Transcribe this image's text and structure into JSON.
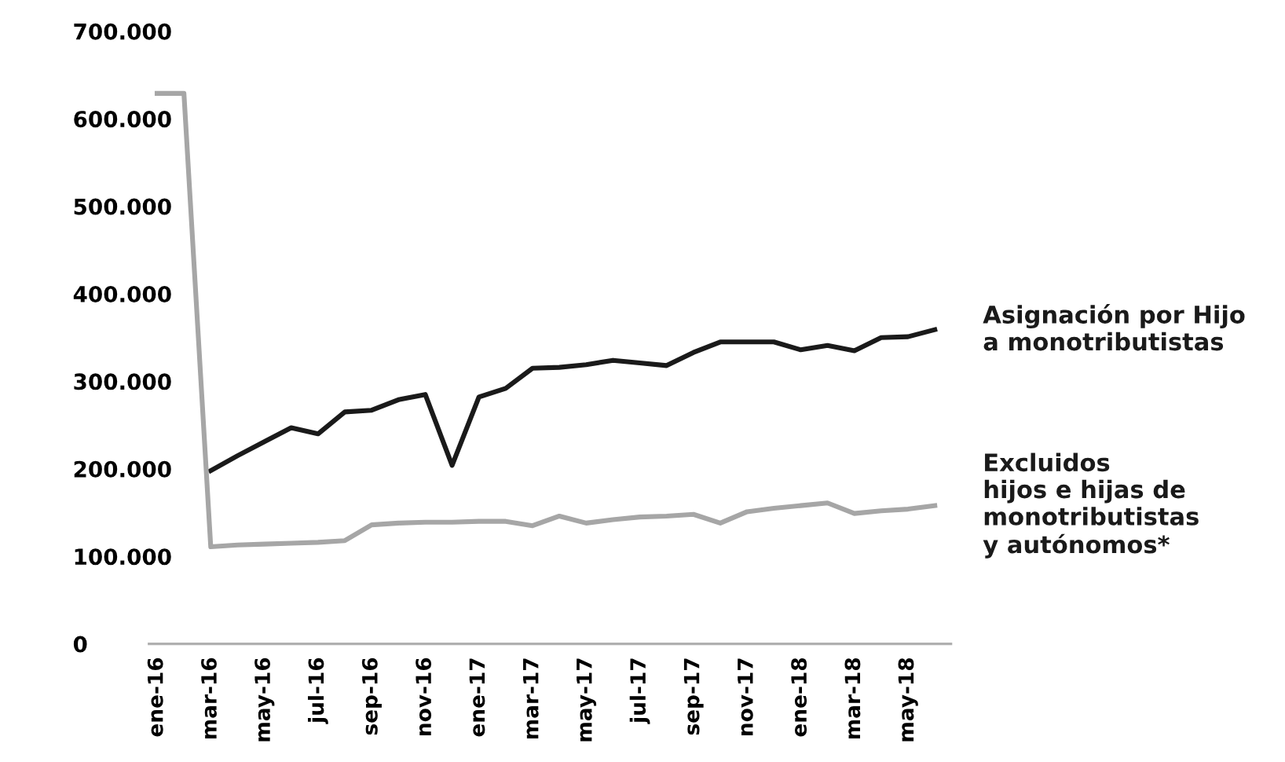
{
  "chart_data": {
    "type": "line",
    "categories": [
      "ene-16",
      null,
      "mar-16",
      null,
      "may-16",
      null,
      "jul-16",
      null,
      "sep-16",
      null,
      "nov-16",
      null,
      "ene-17",
      null,
      "mar-17",
      null,
      "may-17",
      null,
      "jul-17",
      null,
      "sep-17",
      null,
      "nov-17",
      null,
      "ene-18",
      null,
      "mar-18",
      null,
      "may-18",
      null
    ],
    "series": [
      {
        "name": "Asignación por Hijo\na monotributistas",
        "color": "#1a1a1a",
        "values": [
          null,
          null,
          198000,
          215000,
          231000,
          247000,
          240000,
          265000,
          267000,
          279000,
          285000,
          204000,
          282000,
          292000,
          315000,
          316000,
          319000,
          324000,
          321000,
          318000,
          333000,
          345000,
          345000,
          345000,
          336000,
          341000,
          335000,
          350000,
          351000,
          359000
        ]
      },
      {
        "name": "Excluidos\nhijos e hijas de\nmonotributistas\ny autónomos*",
        "color": "#a6a6a6",
        "values": [
          629000,
          629000,
          111000,
          113000,
          114000,
          115000,
          116000,
          118000,
          136000,
          138000,
          139000,
          139000,
          140000,
          140000,
          135000,
          146000,
          138000,
          142000,
          145000,
          146000,
          148000,
          138000,
          151000,
          155000,
          158000,
          161000,
          149000,
          152000,
          154000,
          158000
        ]
      }
    ],
    "ylim": [
      0,
      700000
    ],
    "yticks": [
      0,
      {
        "value": 100000,
        "label": "100.000"
      },
      {
        "value": 200000,
        "label": "200.000"
      },
      {
        "value": 300000,
        "label": "300.000"
      },
      {
        "value": 400000,
        "label": "400.000"
      },
      {
        "value": 500000,
        "label": "500.000"
      },
      {
        "value": 600000,
        "label": "600.000"
      },
      {
        "value": 700000,
        "label": "700.000"
      }
    ],
    "grid": false,
    "legend": false,
    "marker": "none",
    "line_style": "solid"
  }
}
